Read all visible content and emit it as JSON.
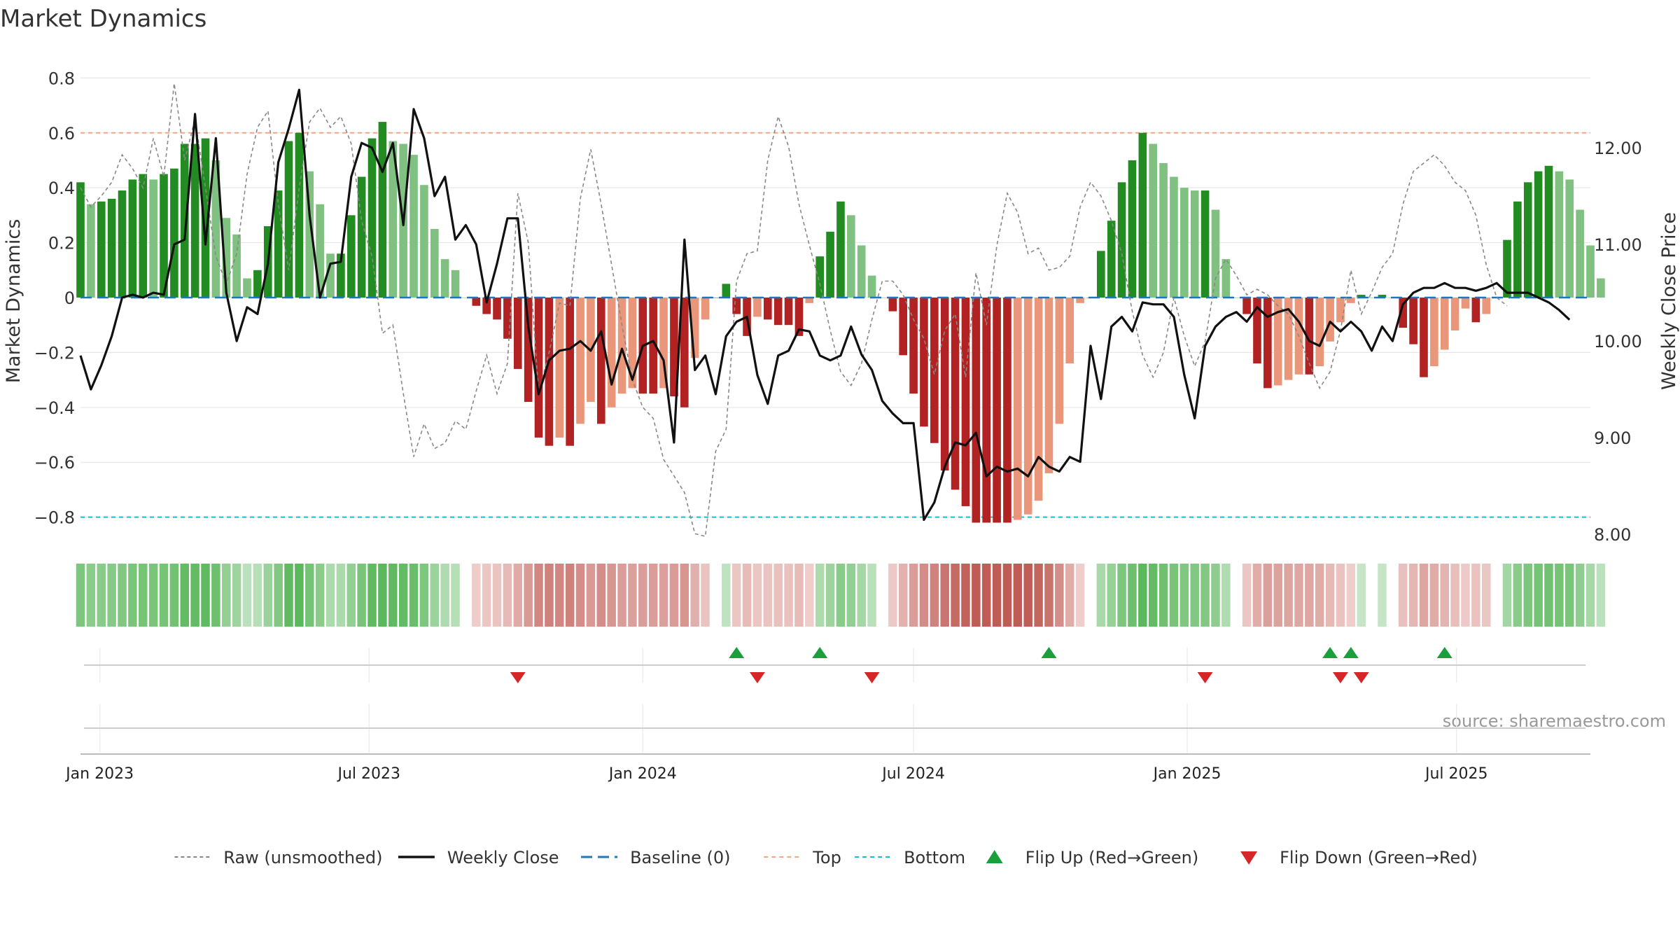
{
  "chart_data": {
    "type": "bar",
    "title": "Market Dynamics",
    "ylabel_left": "Market Dynamics",
    "ylabel_right": "Weekly Close Price",
    "source_note": "source: sharemaestro.com",
    "x_range": [
      "2022-12-19",
      "2025-09-29"
    ],
    "ylim_left": [
      -0.88,
      0.88
    ],
    "ylim_right": [
      7.95,
      12.95
    ],
    "grid": true,
    "left_ticks": [
      {
        "value": 0.8,
        "label": "0.8"
      },
      {
        "value": 0.6,
        "label": "0.6"
      },
      {
        "value": 0.4,
        "label": "0.4"
      },
      {
        "value": 0.2,
        "label": "0.2"
      },
      {
        "value": 0,
        "label": "0"
      },
      {
        "value": -0.2,
        "label": "−0.2"
      },
      {
        "value": -0.4,
        "label": "−0.4"
      },
      {
        "value": -0.6,
        "label": "−0.6"
      },
      {
        "value": -0.8,
        "label": "−0.8"
      }
    ],
    "right_ticks": [
      {
        "value": 12.0,
        "label": "12.00"
      },
      {
        "value": 11.0,
        "label": "11.00"
      },
      {
        "value": 10.0,
        "label": "10.00"
      },
      {
        "value": 9.0,
        "label": "9.00"
      },
      {
        "value": 8.0,
        "label": "8.00"
      }
    ],
    "x_ticks": [
      {
        "date": "2023-01-01",
        "label": "Jan 2023"
      },
      {
        "date": "2023-07-01",
        "label": "Jul 2023"
      },
      {
        "date": "2024-01-01",
        "label": "Jan 2024"
      },
      {
        "date": "2024-07-01",
        "label": "Jul 2024"
      },
      {
        "date": "2025-01-01",
        "label": "Jan 2025"
      },
      {
        "date": "2025-07-01",
        "label": "Jul 2025"
      }
    ],
    "reference_lines": {
      "top": 0.6,
      "bottom": -0.8,
      "baseline": 0
    },
    "weeks": {
      "start": "2022-12-19",
      "step_days": 7,
      "count": 144
    },
    "series": [
      {
        "name": "Market Dynamics",
        "kind": "bar",
        "values": [
          0.42,
          0.34,
          0.35,
          0.36,
          0.39,
          0.43,
          0.45,
          0.43,
          0.45,
          0.47,
          0.56,
          0.56,
          0.58,
          0.5,
          0.29,
          0.23,
          0.07,
          0.1,
          0.26,
          0.39,
          0.57,
          0.6,
          0.46,
          0.34,
          0.16,
          0.16,
          0.3,
          0.44,
          0.58,
          0.64,
          0.57,
          0.56,
          0.52,
          0.41,
          0.25,
          0.14,
          0.1,
          0.0,
          -0.03,
          -0.06,
          -0.08,
          -0.15,
          -0.26,
          -0.38,
          -0.51,
          -0.54,
          -0.51,
          -0.54,
          -0.46,
          -0.38,
          -0.46,
          -0.4,
          -0.35,
          -0.33,
          -0.35,
          -0.35,
          -0.33,
          -0.36,
          -0.4,
          -0.22,
          -0.08,
          0.0,
          0.05,
          -0.06,
          -0.14,
          -0.07,
          -0.08,
          -0.1,
          -0.1,
          -0.14,
          -0.02,
          0.15,
          0.24,
          0.35,
          0.3,
          0.19,
          0.08,
          0.0,
          -0.05,
          -0.21,
          -0.35,
          -0.47,
          -0.53,
          -0.63,
          -0.7,
          -0.76,
          -0.82,
          -0.82,
          -0.82,
          -0.82,
          -0.81,
          -0.79,
          -0.74,
          -0.64,
          -0.46,
          -0.24,
          -0.02,
          0.0,
          0.17,
          0.28,
          0.42,
          0.5,
          0.6,
          0.56,
          0.49,
          0.44,
          0.4,
          0.39,
          0.39,
          0.32,
          0.14,
          0.0,
          -0.06,
          -0.24,
          -0.33,
          -0.32,
          -0.3,
          -0.28,
          -0.28,
          -0.25,
          -0.16,
          -0.09,
          -0.02,
          0.01,
          0.0,
          0.01,
          0.0,
          -0.11,
          -0.17,
          -0.29,
          -0.25,
          -0.19,
          -0.12,
          -0.04,
          -0.09,
          -0.06,
          0.0,
          0.21,
          0.35,
          0.42,
          0.46,
          0.48,
          0.46,
          0.43,
          0.32,
          0.19,
          0.07
        ]
      },
      {
        "name": "Raw (unsmoothed)",
        "kind": "line",
        "values": [
          0.4,
          0.33,
          0.37,
          0.42,
          0.52,
          0.47,
          0.4,
          0.58,
          0.44,
          0.78,
          0.5,
          0.65,
          0.4,
          0.15,
          0.05,
          0.16,
          0.45,
          0.62,
          0.68,
          0.34,
          0.1,
          0.4,
          0.64,
          0.69,
          0.62,
          0.66,
          0.56,
          0.28,
          0.15,
          -0.13,
          -0.1,
          -0.35,
          -0.58,
          -0.46,
          -0.55,
          -0.53,
          -0.45,
          -0.48,
          -0.34,
          -0.21,
          -0.35,
          -0.24,
          0.38,
          0.2,
          -0.35,
          -0.2,
          -0.02,
          -0.03,
          0.36,
          0.54,
          0.34,
          0.12,
          -0.1,
          -0.3,
          -0.4,
          -0.44,
          -0.59,
          -0.65,
          -0.71,
          -0.86,
          -0.87,
          -0.56,
          -0.48,
          0.06,
          0.16,
          0.17,
          0.5,
          0.66,
          0.55,
          0.34,
          0.19,
          0.05,
          -0.12,
          -0.27,
          -0.32,
          -0.24,
          -0.08,
          0.06,
          0.06,
          0.01,
          -0.08,
          -0.15,
          -0.28,
          -0.12,
          -0.06,
          -0.29,
          0.09,
          -0.1,
          0.19,
          0.38,
          0.31,
          0.16,
          0.18,
          0.1,
          0.11,
          0.15,
          0.33,
          0.42,
          0.37,
          0.28,
          0.16,
          -0.05,
          -0.21,
          -0.29,
          -0.2,
          0.0,
          -0.14,
          -0.25,
          -0.16,
          0.07,
          0.14,
          0.08,
          0.01,
          0.03,
          0.01,
          -0.03,
          -0.06,
          -0.14,
          -0.24,
          -0.33,
          -0.27,
          -0.12,
          0.1,
          -0.06,
          0.02,
          0.11,
          0.16,
          0.34,
          0.46,
          0.49,
          0.52,
          0.48,
          0.42,
          0.39,
          0.3,
          0.12,
          0.0,
          -0.03
        ]
      },
      {
        "name": "Weekly Close",
        "kind": "line",
        "axis": "right",
        "values": [
          9.85,
          9.5,
          9.75,
          10.05,
          10.45,
          10.48,
          10.45,
          10.5,
          10.48,
          11.0,
          11.05,
          12.35,
          11.0,
          12.1,
          10.5,
          10.0,
          10.35,
          10.28,
          10.8,
          11.85,
          12.2,
          12.6,
          11.3,
          10.45,
          10.8,
          10.82,
          11.7,
          12.05,
          12.0,
          11.75,
          12.05,
          11.2,
          12.4,
          12.1,
          11.5,
          11.7,
          11.05,
          11.2,
          11.0,
          10.4,
          10.8,
          11.27,
          11.27,
          10.15,
          9.45,
          9.8,
          9.9,
          9.92,
          10.0,
          9.9,
          10.1,
          9.55,
          9.92,
          9.6,
          9.95,
          10.0,
          9.8,
          8.95,
          11.05,
          9.7,
          9.85,
          9.45,
          10.05,
          10.2,
          10.25,
          9.65,
          9.35,
          9.85,
          9.9,
          10.12,
          10.1,
          9.85,
          9.8,
          9.85,
          10.15,
          9.86,
          9.7,
          9.38,
          9.25,
          9.15,
          9.15,
          8.15,
          8.33,
          8.7,
          8.95,
          8.92,
          9.05,
          8.6,
          8.7,
          8.65,
          8.68,
          8.6,
          8.8,
          8.7,
          8.65,
          8.8,
          8.75,
          9.95,
          9.4,
          10.15,
          10.25,
          10.1,
          10.4,
          10.38,
          10.38,
          10.25,
          9.65,
          9.2,
          9.95,
          10.15,
          10.25,
          10.3,
          10.2,
          10.35,
          10.25,
          10.3,
          10.33,
          10.2,
          10.0,
          9.95,
          10.2,
          10.1,
          10.2,
          10.1,
          9.9,
          10.15,
          10.0,
          10.38,
          10.5,
          10.55,
          10.55,
          10.6,
          10.55,
          10.55,
          10.52,
          10.55,
          10.6,
          10.5,
          10.5,
          10.5,
          10.45,
          10.4,
          10.32,
          10.22
        ]
      }
    ],
    "flip_up": [
      "2024-03-04",
      "2024-04-29",
      "2024-09-30",
      "2025-04-07",
      "2025-04-21",
      "2025-06-23"
    ],
    "flip_down": [
      "2023-10-09",
      "2024-03-18",
      "2024-06-03",
      "2025-01-13",
      "2025-04-14",
      "2025-04-28"
    ],
    "legend": {
      "placement": "bottom-center",
      "items": [
        {
          "label": "Raw (unsmoothed)",
          "style": "dashed-gray"
        },
        {
          "label": "Weekly Close",
          "style": "solid-black"
        },
        {
          "label": "Baseline (0)",
          "style": "dashed-blue"
        },
        {
          "label": "Top",
          "style": "dotted-orange"
        },
        {
          "label": "Bottom",
          "style": "dotted-cyan"
        },
        {
          "label": "Flip Up (Red→Green)",
          "style": "triangle-up-green"
        },
        {
          "label": "Flip Down (Green→Red)",
          "style": "triangle-down-red"
        }
      ]
    },
    "colors": {
      "green_strong": "#228b22",
      "green_light": "#80c080",
      "red_strong": "#b22222",
      "red_light": "#e9967a",
      "raw_line": "#888888",
      "close_line": "#111111",
      "baseline": "#1f77b4",
      "top_line": "#f4a582",
      "bottom_line": "#17becf",
      "flip_up": "#1a9f3c",
      "flip_down": "#d62728",
      "text": "#333333"
    }
  }
}
